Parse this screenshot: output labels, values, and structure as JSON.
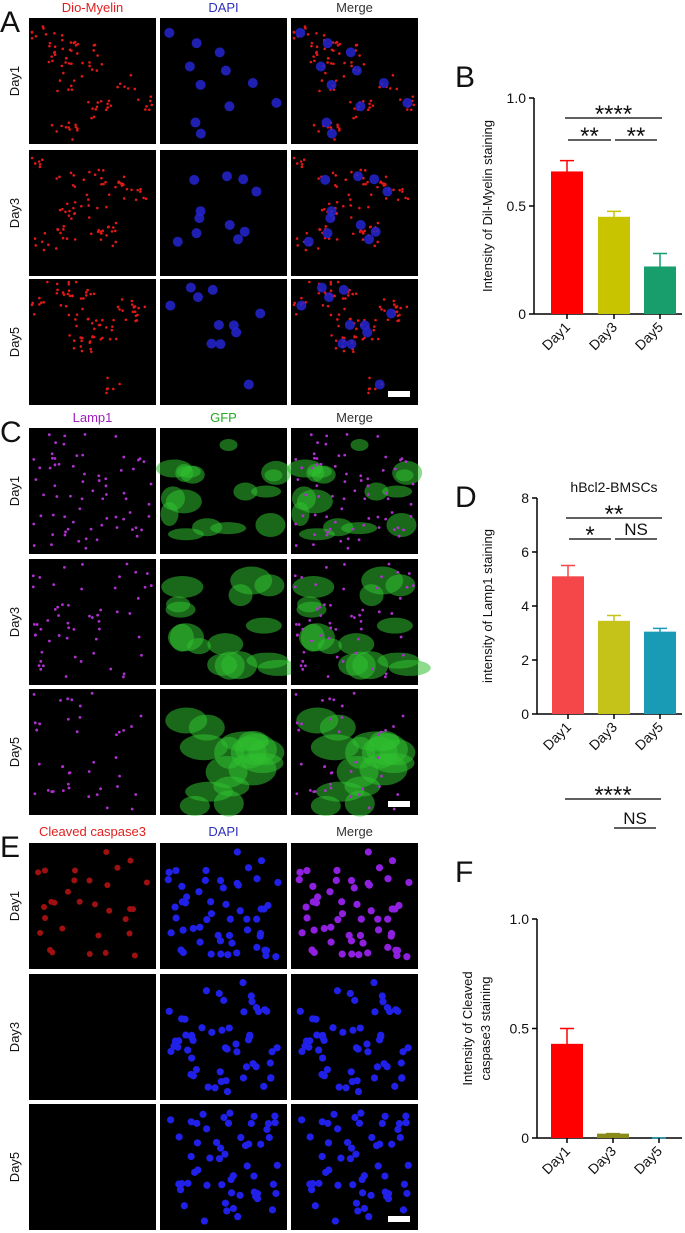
{
  "panels": [
    {
      "letter": "A",
      "headers": [
        "Dio-Myelin",
        "DAPI",
        "Merge"
      ],
      "rows": [
        "Day1",
        "Day3",
        "Day5"
      ]
    },
    {
      "letter": "C",
      "headers": [
        "Lamp1",
        "GFP",
        "Merge"
      ],
      "rows": [
        "Day1",
        "Day3",
        "Day5"
      ]
    },
    {
      "letter": "E",
      "headers": [
        "Cleaved caspase3",
        "DAPI",
        "Merge"
      ],
      "rows": [
        "Day1",
        "Day3",
        "Day5"
      ]
    }
  ],
  "chart_data": [
    {
      "type": "bar",
      "panel_label": "B",
      "ylabel": [
        "Intensity of  Dil-Myelin staining"
      ],
      "categories": [
        "Day1",
        "Day3",
        "Day5"
      ],
      "values": [
        0.66,
        0.45,
        0.22
      ],
      "errors": [
        0.05,
        0.025,
        0.06
      ],
      "colors": [
        "#ff0000",
        "#c8c400",
        "#179e6c"
      ],
      "ylim": [
        0,
        1
      ],
      "yticks": [
        0,
        0.5,
        {
          "value": 1,
          "label": "1.0"
        }
      ],
      "annotations": [
        {
          "text": "****",
          "between": [
            "Day1",
            "Day5"
          ]
        },
        {
          "text": "**",
          "between": [
            "Day1",
            "Day3"
          ]
        },
        {
          "text": "**",
          "between": [
            "Day3",
            "Day5"
          ]
        }
      ]
    },
    {
      "type": "bar",
      "panel_label": "D",
      "title": "hBcl2-BMSCs",
      "ylabel": [
        "intensity of  Lamp1 staining"
      ],
      "categories": [
        "Day1",
        "Day3",
        "Day5"
      ],
      "values": [
        5.1,
        3.45,
        3.05
      ],
      "errors": [
        0.4,
        0.2,
        0.12
      ],
      "colors": [
        "#f5474a",
        "#c5c21a",
        "#1a9bb5"
      ],
      "ylim": [
        0,
        8
      ],
      "yticks": [
        0,
        2,
        4,
        6,
        8
      ],
      "annotations": [
        {
          "text": "**",
          "between": [
            "Day1",
            "Day5"
          ]
        },
        {
          "text": "*",
          "between": [
            "Day1",
            "Day3"
          ]
        },
        {
          "text": "NS",
          "between": [
            "Day3",
            "Day5"
          ]
        }
      ]
    },
    {
      "type": "bar",
      "panel_label": "F",
      "ylabel": [
        "Intensity of Cleaved",
        "caspase3 staining"
      ],
      "categories": [
        "Day1",
        "Day3",
        "Day5"
      ],
      "values": [
        0.43,
        0.02,
        0
      ],
      "errors": [
        0.07,
        0,
        0
      ],
      "colors": [
        "#ff0000",
        "#8a8a1a",
        "#1a9bb5"
      ],
      "ylim": [
        0,
        1
      ],
      "yticks": [
        0,
        0.5,
        {
          "value": 1,
          "label": "1.0"
        }
      ],
      "annotations": [
        {
          "text": "****",
          "between": [
            "Day1",
            "Day5"
          ]
        },
        {
          "text": "NS",
          "between": [
            "Day3",
            "Day5"
          ]
        }
      ]
    }
  ]
}
